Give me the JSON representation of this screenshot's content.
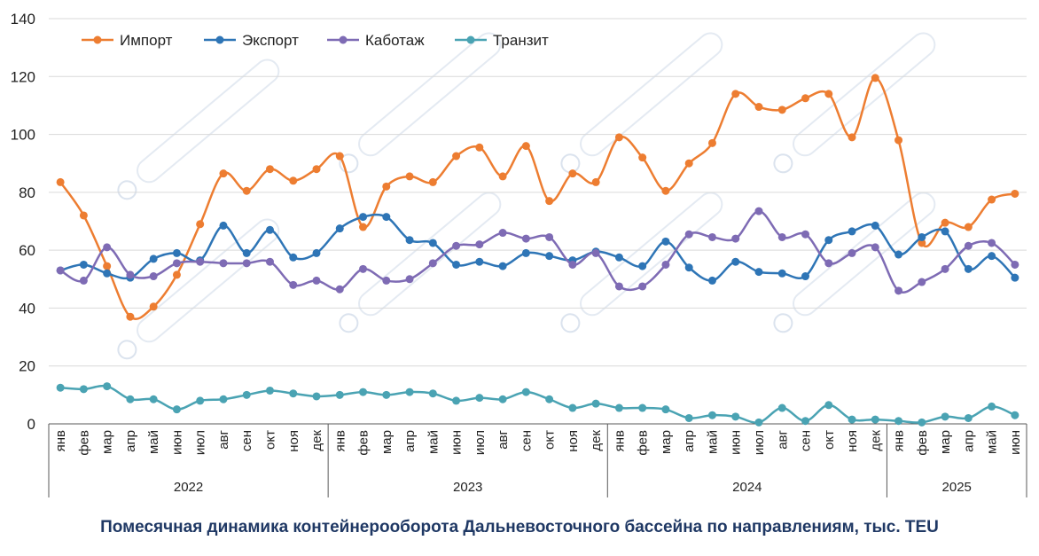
{
  "chart_data": {
    "type": "line",
    "title": "Помесячная динамика контейнерооборота Дальневосточного бассейна по направлениям, тыс. TEU",
    "ylim": [
      0,
      140
    ],
    "yticks": [
      0,
      20,
      40,
      60,
      80,
      100,
      120,
      140
    ],
    "grid": true,
    "legend": "top-left",
    "months": [
      "янв",
      "фев",
      "мар",
      "апр",
      "май",
      "июн",
      "июл",
      "авг",
      "сен",
      "окт",
      "ноя",
      "дек",
      "янв",
      "фев",
      "мар",
      "апр",
      "май",
      "июн",
      "июл",
      "авг",
      "сен",
      "окт",
      "ноя",
      "дек",
      "янв",
      "фев",
      "мар",
      "апр",
      "май",
      "июн",
      "июл",
      "авг",
      "сен",
      "окт",
      "ноя",
      "дек",
      "янв",
      "фев",
      "мар",
      "апр",
      "май",
      "июн"
    ],
    "years": [
      {
        "label": "2022",
        "count": 12
      },
      {
        "label": "2023",
        "count": 12
      },
      {
        "label": "2024",
        "count": 12
      },
      {
        "label": "2025",
        "count": 6
      }
    ],
    "series": [
      {
        "name": "Импорт",
        "color": "#ed7d31",
        "values": [
          83.5,
          72,
          54.5,
          37,
          40.5,
          51.5,
          69,
          86.5,
          80.5,
          88,
          84,
          88,
          92.5,
          68,
          82,
          85.5,
          83.5,
          92.5,
          95.5,
          85.5,
          96,
          77,
          86.5,
          83.5,
          99,
          92,
          80.5,
          90,
          97,
          114,
          109.5,
          108.5,
          112.5,
          114,
          99,
          119.5,
          98,
          62.5,
          69.5,
          68,
          77.5,
          79.5
        ]
      },
      {
        "name": "Экспорт",
        "color": "#2e75b6",
        "values": [
          53,
          55,
          52,
          50.5,
          57,
          59,
          56.5,
          68.5,
          59,
          67,
          57.5,
          59,
          67.5,
          71.5,
          71.5,
          63.5,
          62.5,
          55,
          56,
          54.5,
          59,
          58,
          56.5,
          59.5,
          57.5,
          54.5,
          63,
          54,
          49.5,
          56,
          52.5,
          52,
          51,
          63.5,
          66.5,
          68.5,
          58.5,
          64.5,
          66.5,
          53.5,
          58,
          50.5
        ]
      },
      {
        "name": "Каботаж",
        "color": "#7e6bb4",
        "values": [
          53,
          49.5,
          61,
          51.5,
          51,
          55.5,
          56,
          55.5,
          55.5,
          56,
          48,
          49.5,
          46.5,
          53.5,
          49.5,
          50,
          55.5,
          61.5,
          62,
          66,
          64,
          64.5,
          55,
          59,
          47.5,
          47.5,
          55,
          65.5,
          64.5,
          64,
          73.5,
          64.5,
          65.5,
          55.5,
          59,
          61,
          46,
          49,
          53.5,
          61.5,
          62.5,
          55
        ]
      },
      {
        "name": "Транзит",
        "color": "#4aa3b3",
        "values": [
          12.5,
          12,
          13,
          8.5,
          8.5,
          5,
          8,
          8.5,
          10,
          11.5,
          10.5,
          9.5,
          10,
          11,
          10,
          11,
          10.5,
          8,
          9,
          8.5,
          11,
          8.5,
          5.5,
          7,
          5.5,
          5.5,
          5,
          2,
          3,
          2.5,
          0.5,
          5.5,
          1,
          6.5,
          1.5,
          1.5,
          1,
          0.5,
          2.5,
          2,
          6,
          3
        ]
      }
    ]
  }
}
